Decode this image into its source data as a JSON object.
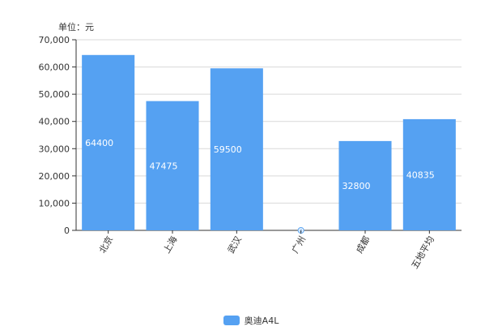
{
  "chart_data": {
    "type": "bar",
    "unit_label": "单位：元",
    "categories": [
      "北京",
      "上海",
      "武汉",
      "广州",
      "成都",
      "五地平均"
    ],
    "series": [
      {
        "name": "奥迪A4L",
        "values": [
          64400,
          47475,
          59500,
          0,
          32800,
          40835
        ],
        "data_labels": [
          "64400",
          "47475",
          "59500",
          "0",
          "32800",
          "40835"
        ]
      }
    ],
    "ylim": [
      0,
      70000
    ],
    "yticks": [
      0,
      10000,
      20000,
      30000,
      40000,
      50000,
      60000,
      70000
    ],
    "ytick_labels": [
      "0",
      "10,000",
      "20,000",
      "30,000",
      "40,000",
      "50,000",
      "60,000",
      "70,000"
    ],
    "grid": true,
    "legend_position": "bottom-center",
    "colors": {
      "bar": "#55a1f2",
      "grid": "#d9d9d9",
      "axis": "#333333",
      "text": "#333333",
      "label": "#ffffff"
    }
  }
}
